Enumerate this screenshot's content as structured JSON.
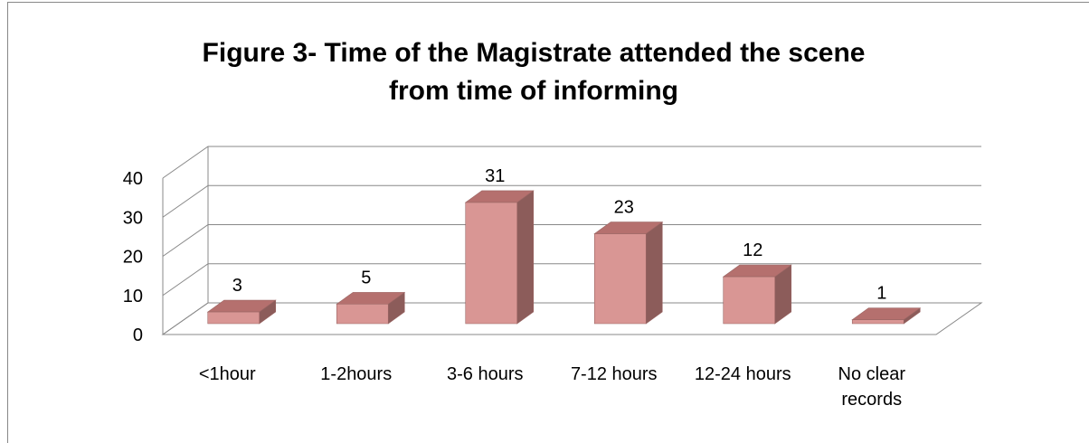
{
  "chart_data": {
    "type": "bar3d",
    "title": "Figure 3- Time of the Magistrate attended the scene from time of informing",
    "categories": [
      "<1hour",
      "1-2hours",
      "3-6 hours",
      "7-12 hours",
      "12-24 hours",
      "No clear records"
    ],
    "values": [
      3,
      5,
      31,
      23,
      12,
      1
    ],
    "color": "#d99694",
    "ylim": [
      0,
      40
    ],
    "yticks": [
      0,
      10,
      20,
      30,
      40
    ],
    "grid": true
  }
}
